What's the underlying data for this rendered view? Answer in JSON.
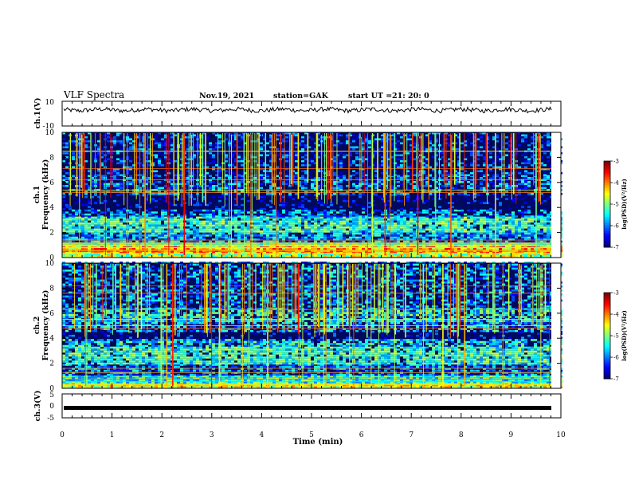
{
  "header": {
    "title": "VLF Spectra",
    "date": "Nov.19, 2021",
    "station": "station=GAK",
    "start_label": "start  UT  =",
    "start_time": "21: 20: 0"
  },
  "chart_data": [
    {
      "type": "line",
      "ylabel": "ch.1(V)",
      "ylim": [
        -10,
        10
      ],
      "yticks": [
        "10",
        "-10"
      ],
      "xlim": [
        0,
        10
      ],
      "description_level": 3,
      "series": [
        {
          "values_approx_mean": 3
        }
      ]
    },
    {
      "type": "heatmap",
      "ylabel_line1": "ch.1",
      "ylabel_line2": "Frequency  (kHz)",
      "ylim": [
        0,
        10
      ],
      "yticks": [
        "0",
        "2",
        "4",
        "6",
        "8",
        "10"
      ],
      "xlim": [
        0,
        10
      ],
      "colorbar": {
        "label": "log(PSD)(V²/Hz)",
        "range": [
          -7,
          -3
        ],
        "ticks": [
          "-3",
          "-4",
          "-5",
          "-6",
          "-7"
        ]
      }
    },
    {
      "type": "heatmap",
      "ylabel_line1": "ch.2",
      "ylabel_line2": "Frequency  (kHz)",
      "ylim": [
        0,
        10
      ],
      "yticks": [
        "0",
        "2",
        "4",
        "6",
        "8",
        "10"
      ],
      "xlim": [
        0,
        10
      ],
      "colorbar": {
        "label": "log(PSD)(V²/Hz)",
        "range": [
          -7,
          -3
        ],
        "ticks": [
          "-3",
          "-4",
          "-5",
          "-6",
          "-7"
        ]
      }
    },
    {
      "type": "line",
      "ylabel": "ch.3(V)",
      "ylim": [
        -5,
        5
      ],
      "yticks": [
        "5",
        "0",
        "-5"
      ],
      "xlim": [
        0,
        10
      ],
      "series": [
        {
          "constant_value": -1
        }
      ]
    }
  ],
  "xaxis": {
    "label": "Time  (min)",
    "ticks": [
      "0",
      "1",
      "2",
      "3",
      "4",
      "5",
      "6",
      "7",
      "8",
      "9",
      "10"
    ]
  },
  "colors": {
    "spectrogram_background": "#000a5a",
    "line": "#000000"
  }
}
